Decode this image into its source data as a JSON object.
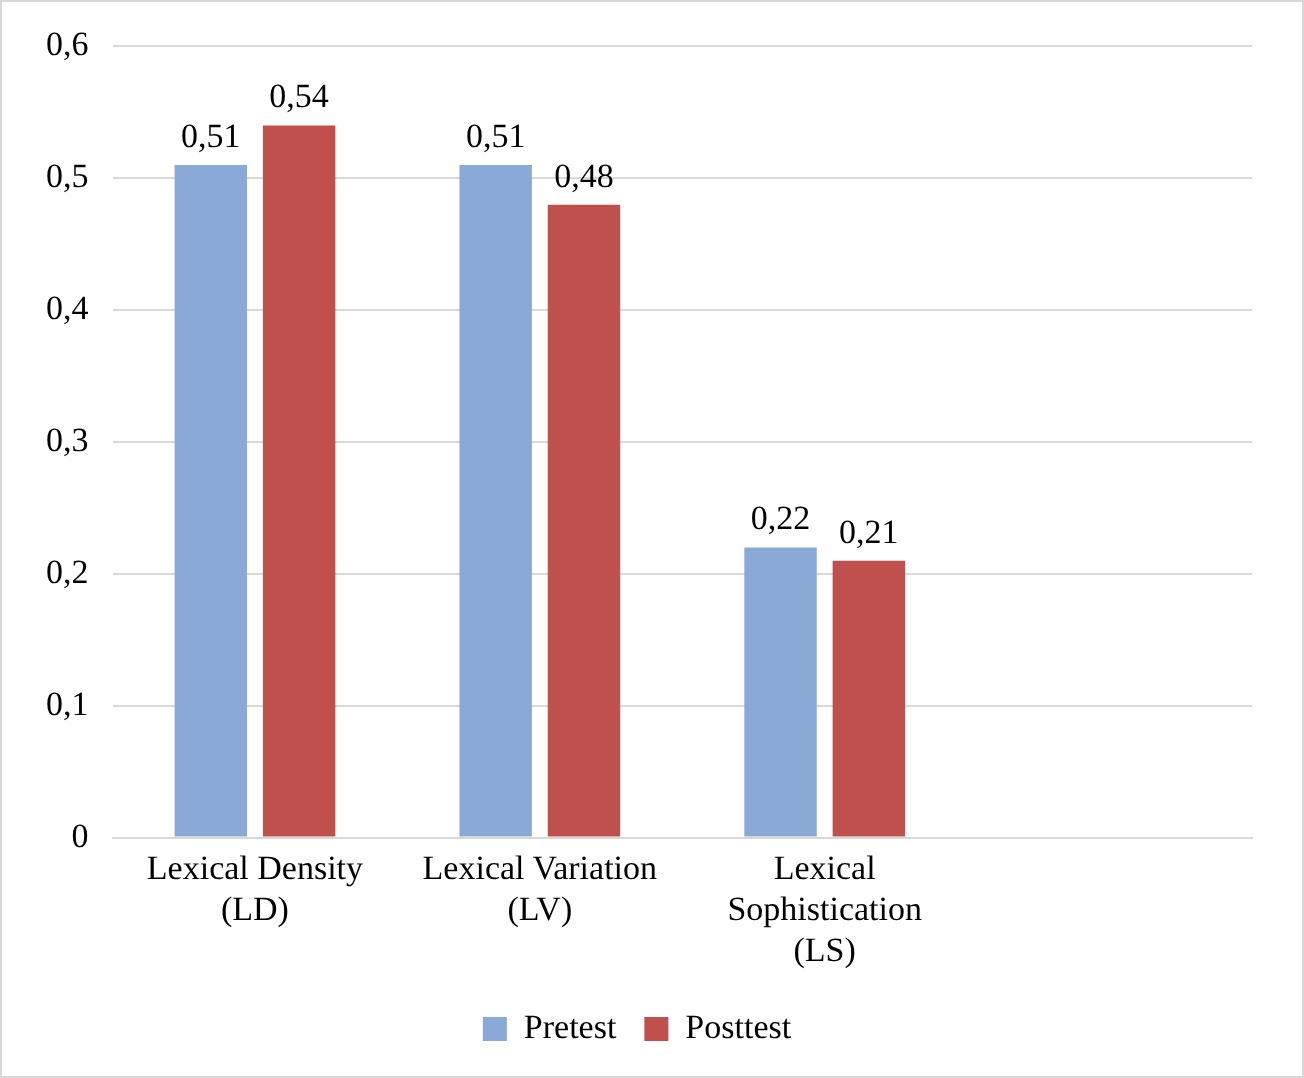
{
  "chart_data": {
    "type": "bar",
    "categories": [
      "Lexical Density (LD)",
      "Lexical Variation (LV)",
      "Lexical Sophistication (LS)",
      null
    ],
    "series": [
      {
        "name": "Pretest",
        "color": "#8aa9d6",
        "values": [
          0.51,
          0.51,
          0.22,
          null
        ],
        "value_labels": [
          "0,51",
          "0,51",
          "0,22",
          null
        ]
      },
      {
        "name": "Posttest",
        "color": "#c0504d",
        "values": [
          0.54,
          0.48,
          0.21,
          null
        ],
        "value_labels": [
          "0,54",
          "0,48",
          "0,21",
          null
        ]
      }
    ],
    "ylim": [
      0,
      0.6
    ],
    "yticks": [
      {
        "value": 0,
        "label": "0"
      },
      {
        "value": 0.1,
        "label": "0,1"
      },
      {
        "value": 0.2,
        "label": "0,2"
      },
      {
        "value": 0.3,
        "label": "0,3"
      },
      {
        "value": 0.4,
        "label": "0,4"
      },
      {
        "value": 0.5,
        "label": "0,5"
      },
      {
        "value": 0.6,
        "label": "0,6"
      }
    ],
    "grid": "y",
    "legend": "bottom"
  }
}
